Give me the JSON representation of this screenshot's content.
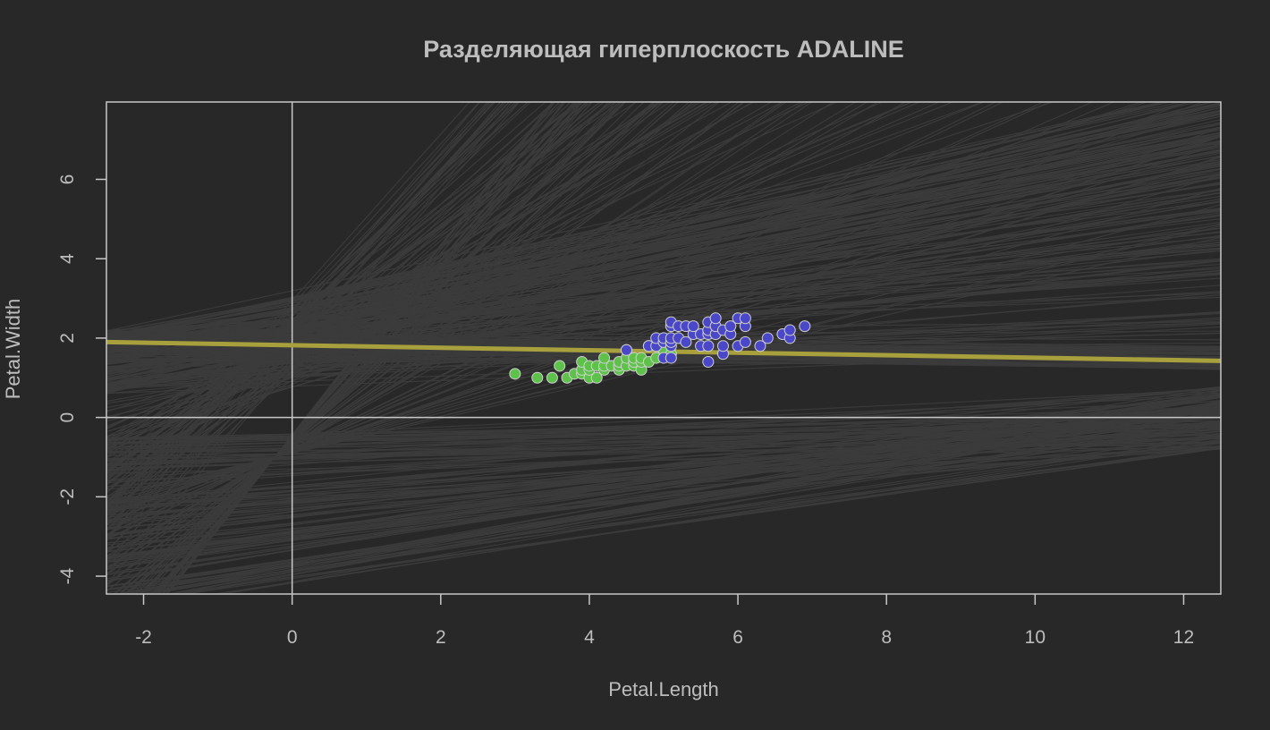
{
  "chart_data": {
    "type": "scatter",
    "title": "Разделяющая гиперплоскость ADALINE",
    "xlabel": "Petal.Length",
    "ylabel": "Petal.Width",
    "xlim": [
      -2.5,
      12.5
    ],
    "ylim": [
      -4.45,
      7.95
    ],
    "x_ticks": [
      -2,
      0,
      2,
      4,
      6,
      8,
      10,
      12
    ],
    "y_ticks": [
      -4,
      -2,
      0,
      2,
      4,
      6
    ],
    "x_tick_labels": [
      "-2",
      "0",
      "2",
      "4",
      "6",
      "8",
      "10",
      "12"
    ],
    "y_tick_labels": [
      "-4",
      "-2",
      "0",
      "2",
      "4",
      "6"
    ],
    "reference_lines": {
      "x": 0,
      "y": 0,
      "color": "#c8c8c8"
    },
    "colors": {
      "background": "#282828",
      "training_lines": "#3c3c3c",
      "final_line": "#a8a03c",
      "point_outline": "#d0d0d0"
    },
    "final_line": {
      "slope": -0.0316,
      "intercept": 1.82
    },
    "series": [
      {
        "color": "#5ec24a",
        "points": [
          [
            3.0,
            1.1
          ],
          [
            3.3,
            1.0
          ],
          [
            3.5,
            1.0
          ],
          [
            3.6,
            1.3
          ],
          [
            3.7,
            1.0
          ],
          [
            3.8,
            1.1
          ],
          [
            3.9,
            1.1
          ],
          [
            3.9,
            1.2
          ],
          [
            3.9,
            1.4
          ],
          [
            4.0,
            1.0
          ],
          [
            4.0,
            1.2
          ],
          [
            4.0,
            1.3
          ],
          [
            4.1,
            1.0
          ],
          [
            4.1,
            1.3
          ],
          [
            4.2,
            1.2
          ],
          [
            4.2,
            1.3
          ],
          [
            4.2,
            1.5
          ],
          [
            4.3,
            1.3
          ],
          [
            4.4,
            1.2
          ],
          [
            4.4,
            1.3
          ],
          [
            4.4,
            1.4
          ],
          [
            4.5,
            1.3
          ],
          [
            4.5,
            1.5
          ],
          [
            4.5,
            1.7
          ],
          [
            4.6,
            1.3
          ],
          [
            4.6,
            1.4
          ],
          [
            4.6,
            1.5
          ],
          [
            4.7,
            1.2
          ],
          [
            4.7,
            1.4
          ],
          [
            4.7,
            1.5
          ],
          [
            4.8,
            1.4
          ],
          [
            4.8,
            1.8
          ],
          [
            4.9,
            1.5
          ],
          [
            5.0,
            1.7
          ],
          [
            5.1,
            1.6
          ]
        ]
      },
      {
        "color": "#4a48c8",
        "points": [
          [
            4.5,
            1.7
          ],
          [
            4.8,
            1.8
          ],
          [
            4.9,
            1.8
          ],
          [
            4.9,
            2.0
          ],
          [
            5.0,
            1.5
          ],
          [
            5.0,
            1.9
          ],
          [
            5.0,
            2.0
          ],
          [
            5.1,
            1.5
          ],
          [
            5.1,
            1.8
          ],
          [
            5.1,
            1.9
          ],
          [
            5.1,
            2.0
          ],
          [
            5.1,
            2.3
          ],
          [
            5.1,
            2.4
          ],
          [
            5.2,
            2.0
          ],
          [
            5.2,
            2.3
          ],
          [
            5.3,
            1.9
          ],
          [
            5.3,
            2.3
          ],
          [
            5.4,
            2.1
          ],
          [
            5.4,
            2.3
          ],
          [
            5.5,
            1.8
          ],
          [
            5.5,
            2.1
          ],
          [
            5.6,
            1.4
          ],
          [
            5.6,
            1.8
          ],
          [
            5.6,
            2.1
          ],
          [
            5.6,
            2.2
          ],
          [
            5.6,
            2.4
          ],
          [
            5.7,
            2.1
          ],
          [
            5.7,
            2.3
          ],
          [
            5.7,
            2.5
          ],
          [
            5.8,
            1.6
          ],
          [
            5.8,
            1.8
          ],
          [
            5.8,
            2.2
          ],
          [
            5.9,
            2.1
          ],
          [
            5.9,
            2.3
          ],
          [
            6.0,
            1.8
          ],
          [
            6.0,
            2.5
          ],
          [
            6.1,
            1.9
          ],
          [
            6.1,
            2.3
          ],
          [
            6.1,
            2.5
          ],
          [
            6.3,
            1.8
          ],
          [
            6.4,
            2.0
          ],
          [
            6.6,
            2.1
          ],
          [
            6.7,
            2.0
          ],
          [
            6.7,
            2.2
          ],
          [
            6.9,
            2.3
          ]
        ]
      }
    ]
  }
}
